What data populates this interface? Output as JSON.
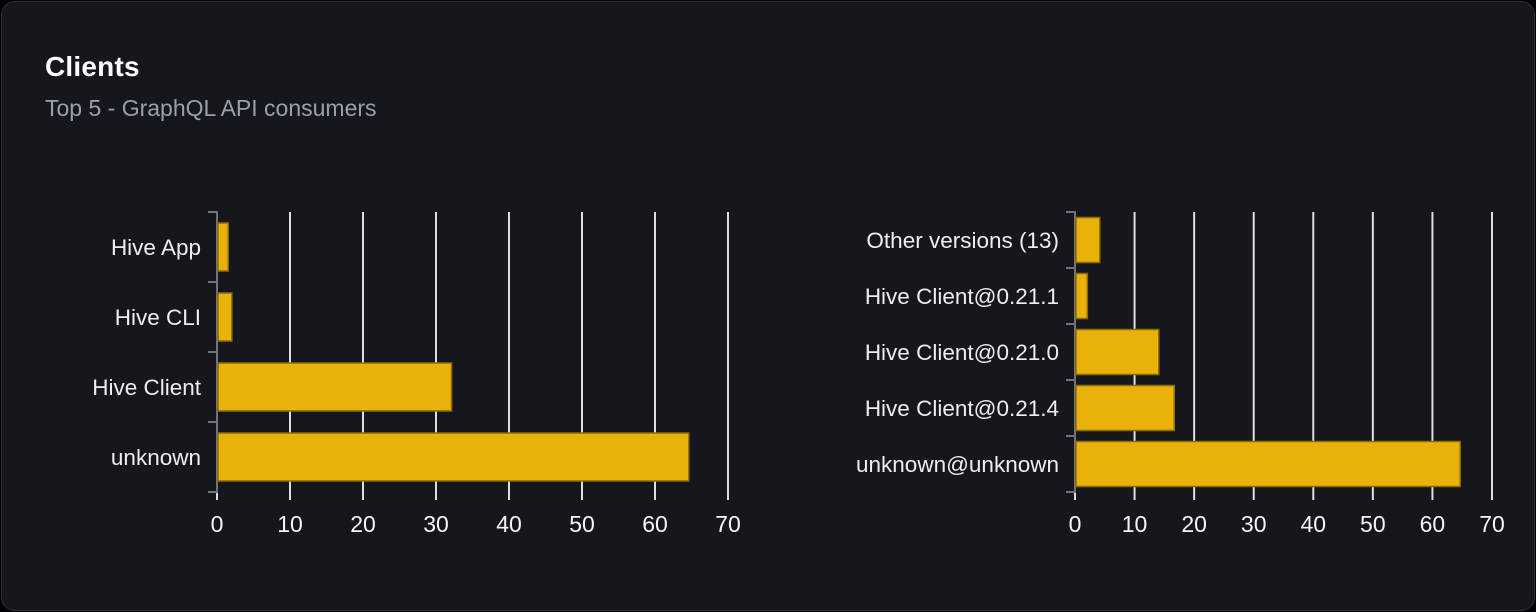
{
  "card": {
    "title": "Clients",
    "subtitle": "Top 5 - GraphQL API consumers"
  },
  "colors": {
    "page_background": "#000000",
    "card_background": "#15171d",
    "card_border": "#2d3037",
    "bar_fill": "#e9b208",
    "bar_stroke": "#8a6b06",
    "grid_line": "#dcdee6",
    "axis_line": "#6e737d",
    "tick_label": "#f5f6f7",
    "category_label": "#edeef1",
    "title_color": "#ffffff",
    "subtitle_color": "#99a0ab"
  },
  "chart_data": [
    {
      "type": "bar",
      "orientation": "horizontal",
      "title": "Clients by name",
      "categories": [
        "Hive App",
        "Hive CLI",
        "Hive Client",
        "unknown"
      ],
      "values": [
        1.4,
        1.9,
        32,
        64.5
      ],
      "xlim": [
        0,
        70
      ],
      "xticks": [
        0,
        10,
        20,
        30,
        40,
        50,
        60,
        70
      ],
      "xlabel": "",
      "ylabel": "",
      "grid": true,
      "legend": false
    },
    {
      "type": "bar",
      "orientation": "horizontal",
      "title": "Clients by version",
      "categories": [
        "Other versions (13)",
        "Hive Client@0.21.1",
        "Hive Client@0.21.0",
        "Hive Client@0.21.4",
        "unknown@unknown"
      ],
      "values": [
        4,
        1.9,
        13.9,
        16.5,
        64.5
      ],
      "xlim": [
        0,
        70
      ],
      "xticks": [
        0,
        10,
        20,
        30,
        40,
        50,
        60,
        70
      ],
      "xlabel": "",
      "ylabel": "",
      "grid": true,
      "legend": false
    }
  ]
}
